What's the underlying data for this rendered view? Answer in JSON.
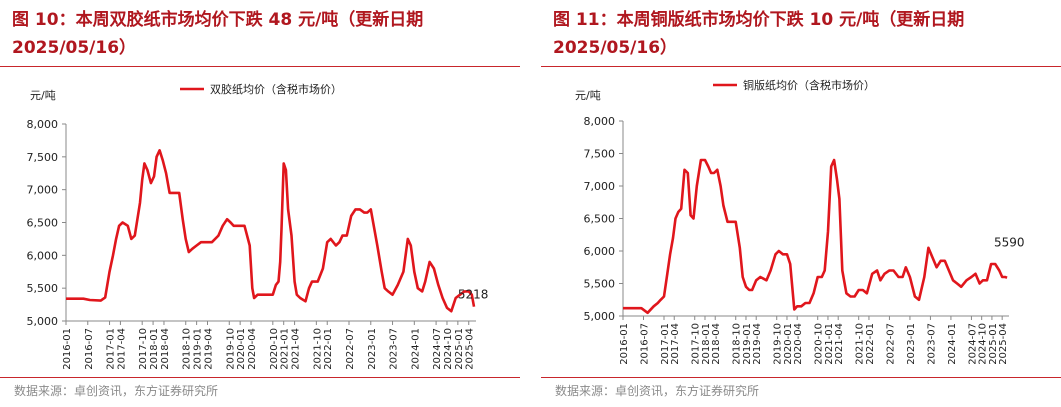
{
  "panels": [
    {
      "title_line1": "图 10：本周双胶纸市场均价下跌 48 元/吨（更新日期",
      "title_line2": "2025/05/16）",
      "source": "数据来源：卓创资讯，东方证券研究所"
    },
    {
      "title_line1": "图 11：本周铜版纸市场均价下跌 10 元/吨（更新日期",
      "title_line2": "2025/05/16）",
      "source": "数据来源：卓创资讯，东方证券研究所"
    }
  ],
  "colors": {
    "line": "#e0161c",
    "title": "#b0171f",
    "rule": "#c8262c",
    "axis": "#888888"
  },
  "chart_data": [
    {
      "type": "line",
      "ylabel": "元/吨",
      "ylim": [
        5000,
        8000
      ],
      "yticks": [
        5000,
        5500,
        6000,
        6500,
        7000,
        7500,
        8000
      ],
      "ytick_labels": [
        "5,000",
        "5,500",
        "6,000",
        "6,500",
        "7,000",
        "7,500",
        "8,000"
      ],
      "xlim": [
        2016.0,
        2025.4167
      ],
      "xticks": [
        2016.0,
        2016.5,
        2017.0,
        2017.25,
        2017.75,
        2018.0,
        2018.25,
        2018.75,
        2019.0,
        2019.25,
        2019.75,
        2020.0,
        2020.25,
        2020.75,
        2021.0,
        2021.25,
        2021.75,
        2022.0,
        2022.5,
        2023.0,
        2023.5,
        2024.0,
        2024.5,
        2024.75,
        2025.0,
        2025.25
      ],
      "xtick_labels": [
        "2016-01",
        "2016-07",
        "2017-01",
        "2017-04",
        "2017-10",
        "2018-01",
        "2018-04",
        "2018-10",
        "2019-01",
        "2019-04",
        "2019-10",
        "2020-01",
        "2020-04",
        "2020-10",
        "2021-01",
        "2021-04",
        "2021-10",
        "2022-01",
        "2022-07",
        "2023-01",
        "2023-07",
        "2024-01",
        "2024-07",
        "2024-10",
        "2025-01",
        "2025-04"
      ],
      "legend": "top-center",
      "series": [
        {
          "name": "双胶纸均价（含税市场价）",
          "x": [
            2016.0,
            2016.4,
            2016.55,
            2016.8,
            2016.9,
            2017.0,
            2017.08,
            2017.15,
            2017.22,
            2017.3,
            2017.42,
            2017.5,
            2017.58,
            2017.7,
            2017.75,
            2017.8,
            2017.87,
            2017.95,
            2018.02,
            2018.08,
            2018.15,
            2018.22,
            2018.3,
            2018.38,
            2018.45,
            2018.6,
            2018.68,
            2018.75,
            2018.82,
            2018.9,
            2019.0,
            2019.1,
            2019.2,
            2019.35,
            2019.5,
            2019.6,
            2019.7,
            2019.78,
            2019.85,
            2019.95,
            2020.1,
            2020.22,
            2020.28,
            2020.32,
            2020.4,
            2020.55,
            2020.75,
            2020.82,
            2020.88,
            2020.92,
            2020.95,
            2021.0,
            2021.05,
            2021.1,
            2021.18,
            2021.25,
            2021.3,
            2021.38,
            2021.5,
            2021.58,
            2021.65,
            2021.78,
            2021.9,
            2022.0,
            2022.08,
            2022.2,
            2022.28,
            2022.35,
            2022.45,
            2022.55,
            2022.65,
            2022.75,
            2022.85,
            2022.92,
            2023.0,
            2023.15,
            2023.25,
            2023.32,
            2023.4,
            2023.5,
            2023.62,
            2023.75,
            2023.85,
            2023.92,
            2024.0,
            2024.08,
            2024.18,
            2024.25,
            2024.35,
            2024.45,
            2024.55,
            2024.65,
            2024.75,
            2024.85,
            2024.95,
            2025.05,
            2025.15,
            2025.25,
            2025.32,
            2025.37
          ],
          "y": [
            5340,
            5340,
            5320,
            5310,
            5360,
            5750,
            6000,
            6250,
            6450,
            6500,
            6450,
            6250,
            6300,
            6800,
            7150,
            7400,
            7300,
            7100,
            7200,
            7500,
            7600,
            7450,
            7250,
            6950,
            6950,
            6950,
            6550,
            6250,
            6050,
            6100,
            6150,
            6200,
            6200,
            6200,
            6300,
            6450,
            6550,
            6500,
            6450,
            6450,
            6450,
            6150,
            5500,
            5350,
            5400,
            5400,
            5400,
            5550,
            5600,
            5900,
            6400,
            7400,
            7300,
            6700,
            6300,
            5600,
            5400,
            5350,
            5300,
            5500,
            5600,
            5600,
            5800,
            6200,
            6250,
            6150,
            6200,
            6300,
            6300,
            6600,
            6700,
            6700,
            6650,
            6650,
            6700,
            6150,
            5750,
            5500,
            5450,
            5400,
            5550,
            5750,
            6250,
            6150,
            5750,
            5500,
            5450,
            5600,
            5900,
            5800,
            5550,
            5350,
            5200,
            5150,
            5350,
            5400,
            5450,
            5450,
            5400,
            5218
          ]
        }
      ],
      "annotations": [
        {
          "text": "5218",
          "x": 2025.0,
          "y": 5250
        }
      ]
    },
    {
      "type": "line",
      "ylabel": "元/吨",
      "ylim": [
        5000,
        8000
      ],
      "yticks": [
        5000,
        5500,
        6000,
        6500,
        7000,
        7500,
        8000
      ],
      "ytick_labels": [
        "5,000",
        "5,500",
        "6,000",
        "6,500",
        "7,000",
        "7,500",
        "8,000"
      ],
      "xlim": [
        2016.0,
        2025.4167
      ],
      "xticks": [
        2016.0,
        2016.5,
        2017.0,
        2017.25,
        2017.75,
        2018.0,
        2018.25,
        2018.75,
        2019.0,
        2019.25,
        2019.75,
        2020.0,
        2020.25,
        2020.75,
        2021.0,
        2021.25,
        2021.75,
        2022.0,
        2022.5,
        2023.0,
        2023.5,
        2024.0,
        2024.5,
        2024.75,
        2025.0,
        2025.25
      ],
      "xtick_labels": [
        "2016-01",
        "2016-07",
        "2017-01",
        "2017-04",
        "2017-10",
        "2018-01",
        "2018-04",
        "2018-10",
        "2019-01",
        "2019-04",
        "2019-10",
        "2020-01",
        "2020-04",
        "2020-10",
        "2021-01",
        "2021-04",
        "2021-10",
        "2022-01",
        "2022-07",
        "2023-01",
        "2023-07",
        "2024-01",
        "2024-07",
        "2024-10",
        "2025-01",
        "2025-04"
      ],
      "legend": "top-center",
      "series": [
        {
          "name": "铜版纸均价（含税市场价）",
          "x": [
            2016.0,
            2016.35,
            2016.45,
            2016.6,
            2016.75,
            2016.85,
            2016.92,
            2017.0,
            2017.08,
            2017.15,
            2017.22,
            2017.28,
            2017.35,
            2017.42,
            2017.5,
            2017.58,
            2017.65,
            2017.72,
            2017.8,
            2017.9,
            2018.0,
            2018.08,
            2018.15,
            2018.22,
            2018.3,
            2018.38,
            2018.45,
            2018.55,
            2018.65,
            2018.75,
            2018.85,
            2018.92,
            2019.0,
            2019.08,
            2019.15,
            2019.25,
            2019.35,
            2019.5,
            2019.6,
            2019.72,
            2019.8,
            2019.9,
            2020.0,
            2020.08,
            2020.18,
            2020.25,
            2020.35,
            2020.45,
            2020.55,
            2020.65,
            2020.75,
            2020.85,
            2020.92,
            2021.0,
            2021.08,
            2021.15,
            2021.22,
            2021.28,
            2021.35,
            2021.45,
            2021.55,
            2021.65,
            2021.75,
            2021.85,
            2021.95,
            2022.08,
            2022.2,
            2022.28,
            2022.38,
            2022.5,
            2022.6,
            2022.72,
            2022.82,
            2022.9,
            2023.0,
            2023.12,
            2023.22,
            2023.35,
            2023.45,
            2023.55,
            2023.65,
            2023.75,
            2023.85,
            2023.95,
            2024.05,
            2024.15,
            2024.25,
            2024.38,
            2024.5,
            2024.6,
            2024.7,
            2024.78,
            2024.88,
            2024.98,
            2025.08,
            2025.18,
            2025.25,
            2025.32,
            2025.37
          ],
          "y": [
            5120,
            5120,
            5120,
            5050,
            5150,
            5200,
            5250,
            5300,
            5650,
            5950,
            6200,
            6500,
            6600,
            6650,
            7250,
            7200,
            6550,
            6500,
            7000,
            7400,
            7400,
            7300,
            7200,
            7200,
            7250,
            7000,
            6700,
            6450,
            6450,
            6450,
            6050,
            5600,
            5450,
            5400,
            5400,
            5550,
            5600,
            5550,
            5700,
            5950,
            6000,
            5950,
            5950,
            5800,
            5100,
            5150,
            5150,
            5200,
            5200,
            5350,
            5600,
            5600,
            5700,
            6300,
            7300,
            7400,
            7100,
            6800,
            5700,
            5350,
            5300,
            5300,
            5400,
            5400,
            5350,
            5650,
            5700,
            5550,
            5650,
            5700,
            5700,
            5600,
            5600,
            5750,
            5600,
            5300,
            5250,
            5600,
            6050,
            5900,
            5750,
            5850,
            5850,
            5700,
            5550,
            5500,
            5450,
            5550,
            5600,
            5650,
            5500,
            5550,
            5550,
            5800,
            5800,
            5700,
            5600,
            5600,
            5590
          ]
        }
      ],
      "annotations": [
        {
          "text": "5590",
          "x": 2025.05,
          "y": 5980
        }
      ]
    }
  ]
}
